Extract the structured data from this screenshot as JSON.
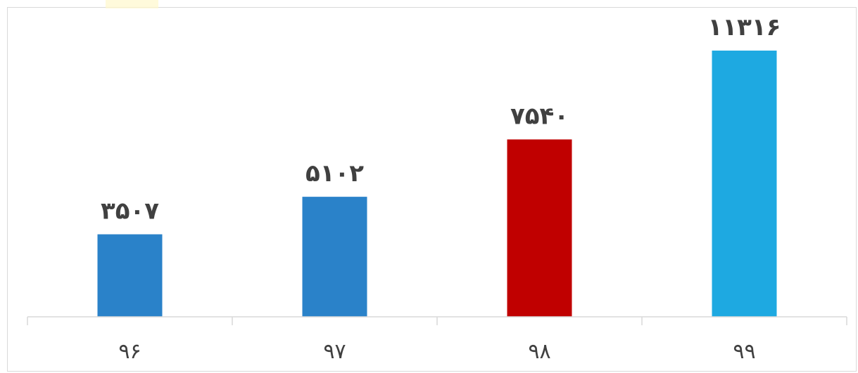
{
  "chart_data": {
    "type": "bar",
    "categories": [
      "۹۶",
      "۹۷",
      "۹۸",
      "۹۹"
    ],
    "values": [
      3507,
      5102,
      7540,
      11316
    ],
    "value_labels": [
      "۳۵۰۷",
      "۵۱۰۲",
      "۷۵۴۰",
      "۱۱۳۱۶"
    ],
    "bar_colors": [
      "#2a82c9",
      "#2a82c9",
      "#c00000",
      "#1ea9e1"
    ],
    "title": "",
    "xlabel": "",
    "ylabel": "",
    "ylim": [
      0,
      12000
    ],
    "grid": false,
    "legend": "none"
  }
}
